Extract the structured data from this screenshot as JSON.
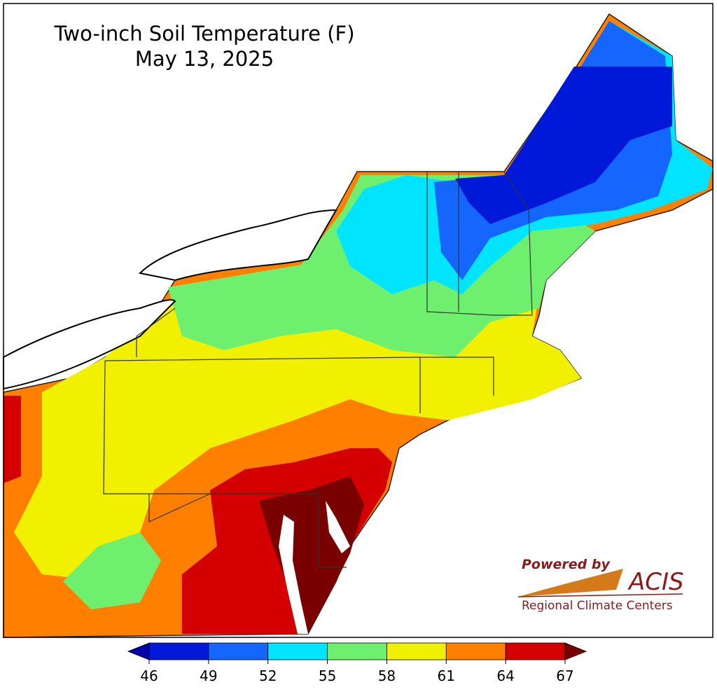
{
  "title": "Two-inch Soil Temperature (F)",
  "subtitle": "May 13, 2025",
  "colorbar": {
    "ticks": [
      46,
      49,
      52,
      55,
      58,
      61,
      64,
      67
    ],
    "colors": [
      "#0018d8",
      "#1466ff",
      "#00e4ff",
      "#6ef06e",
      "#f0f000",
      "#ff8000",
      "#d40000"
    ],
    "under_color": "#0000a8",
    "over_color": "#7a0000"
  },
  "logo": {
    "tagline": "Powered by",
    "name": "ACIS",
    "org": "Regional Climate Centers"
  }
}
